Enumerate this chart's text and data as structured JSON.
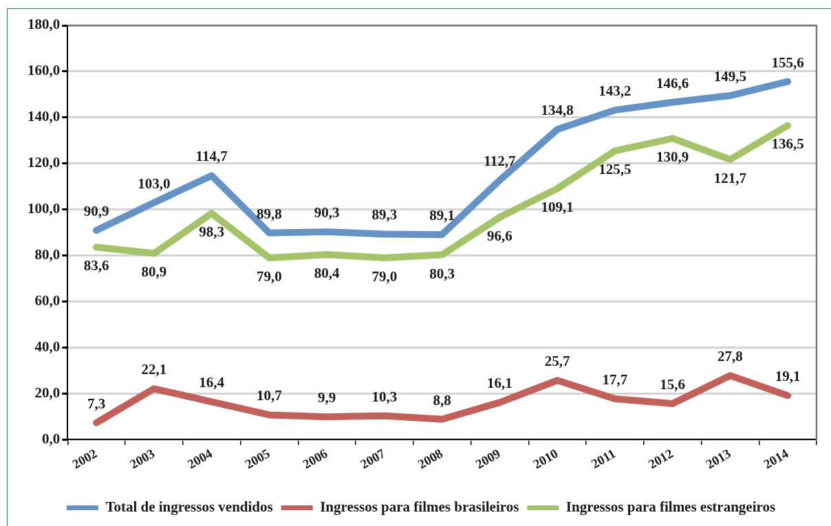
{
  "chart_data": {
    "type": "line",
    "categories": [
      "2002",
      "2003",
      "2004",
      "2005",
      "2006",
      "2007",
      "2008",
      "2009",
      "2010",
      "2011",
      "2012",
      "2013",
      "2014"
    ],
    "series": [
      {
        "name": "Total de ingressos vendidos",
        "color": "#6693c6",
        "values": [
          90.9,
          103.0,
          114.7,
          89.8,
          90.3,
          89.3,
          89.1,
          112.7,
          134.8,
          143.2,
          146.6,
          149.5,
          155.6
        ],
        "value_labels": [
          "90,9",
          "103,0",
          "114,7",
          "89,8",
          "90,3",
          "89,3",
          "89,1",
          "112,7",
          "134,8",
          "143,2",
          "146,6",
          "149,5",
          "155,6"
        ]
      },
      {
        "name": "Ingressos para filmes brasileiros",
        "color": "#c2605c",
        "values": [
          7.3,
          22.1,
          16.4,
          10.7,
          9.9,
          10.3,
          8.8,
          16.1,
          25.7,
          17.7,
          15.6,
          27.8,
          19.1
        ],
        "value_labels": [
          "7,3",
          "22,1",
          "16,4",
          "10,7",
          "9,9",
          "10,3",
          "8,8",
          "16,1",
          "25,7",
          "17,7",
          "15,6",
          "27,8",
          "19,1"
        ]
      },
      {
        "name": "Ingressos para filmes estrangeiros",
        "color": "#a5c46a",
        "values": [
          83.6,
          80.9,
          98.3,
          79.0,
          80.4,
          79.0,
          80.3,
          96.6,
          109.1,
          125.5,
          130.9,
          121.7,
          136.5
        ],
        "value_labels": [
          "83,6",
          "80,9",
          "98,3",
          "79,0",
          "80,4",
          "79,0",
          "80,3",
          "96,6",
          "109,1",
          "125,5",
          "130,9",
          "121,7",
          "136,5"
        ]
      }
    ],
    "ylim": [
      0,
      180
    ],
    "yticks": [
      {
        "value": 0,
        "label": "0,0"
      },
      {
        "value": 20,
        "label": "20,0"
      },
      {
        "value": 40,
        "label": "40,0"
      },
      {
        "value": 60,
        "label": "60,0"
      },
      {
        "value": 80,
        "label": "80,0"
      },
      {
        "value": 100,
        "label": "100,0"
      },
      {
        "value": 120,
        "label": "120,0"
      },
      {
        "value": 140,
        "label": "140,0"
      },
      {
        "value": 160,
        "label": "160,0"
      },
      {
        "value": 180,
        "label": "180,0"
      }
    ],
    "grid": "y",
    "legend": "bottom",
    "marker": "none",
    "line_style": "solid"
  }
}
